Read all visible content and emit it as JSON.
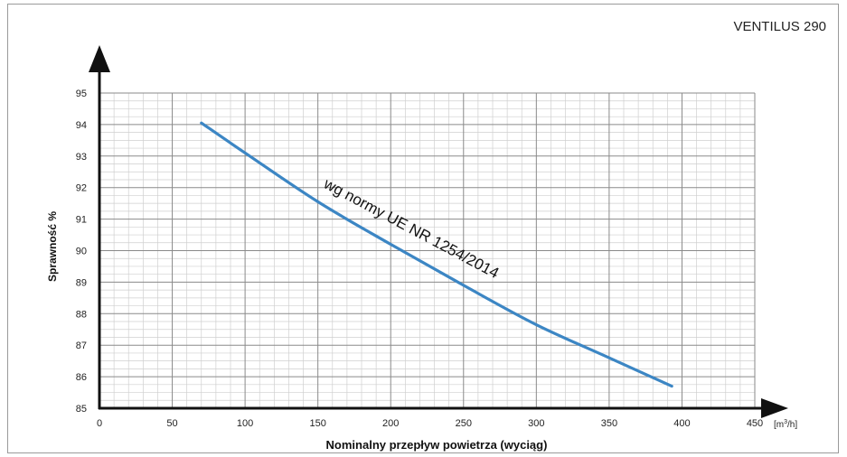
{
  "chart_data": {
    "type": "line",
    "title": "VENTILUS 290",
    "xlabel": "Nominalny przepływ powietrza (wyciąg)",
    "ylabel": "Sprawność %",
    "x_unit_prefix": "[m",
    "x_unit_sup": "3",
    "x_unit_suffix": "/h]",
    "xlim": [
      0,
      450
    ],
    "ylim": [
      85,
      95
    ],
    "x_ticks": [
      0,
      50,
      100,
      150,
      200,
      250,
      300,
      350,
      400,
      450
    ],
    "y_ticks": [
      85,
      86,
      87,
      88,
      89,
      90,
      91,
      92,
      93,
      94,
      95
    ],
    "grid": true,
    "annotation": "wg normy UE NR 1254/2014",
    "series": [
      {
        "color": "#3c86c4",
        "x": [
          70,
          100,
          150,
          200,
          250,
          300,
          350,
          393
        ],
        "y": [
          94.05,
          93.1,
          91.55,
          90.2,
          88.9,
          87.65,
          86.6,
          85.7
        ]
      }
    ]
  }
}
